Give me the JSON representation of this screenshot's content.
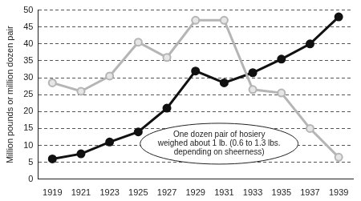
{
  "chart_data": {
    "type": "line",
    "y_label": "Million pounds or million dozen pair",
    "categories": [
      "1919",
      "1921",
      "1923",
      "1925",
      "1927",
      "1929",
      "1931",
      "1933",
      "1935",
      "1937",
      "1939"
    ],
    "series": [
      {
        "color": "#b5b5b5",
        "marker": "circle",
        "values": [
          28.5,
          26,
          30.5,
          40.5,
          36,
          47,
          47,
          26.5,
          25.5,
          15,
          6.5
        ]
      },
      {
        "color": "#111111",
        "marker": "circle",
        "values": [
          6,
          7.5,
          11,
          14,
          21,
          32,
          28.5,
          31.5,
          35.5,
          40,
          48
        ]
      }
    ],
    "annotation": [
      "One dozen pair of hosiery",
      "weighed about 1 lb. (0.6 to 1.3 lbs.",
      "depending on sheerness)"
    ],
    "ylim": [
      0,
      50
    ],
    "yticks": [
      0,
      5,
      10,
      15,
      20,
      25,
      30,
      35,
      40,
      45,
      50
    ],
    "grid": true
  }
}
